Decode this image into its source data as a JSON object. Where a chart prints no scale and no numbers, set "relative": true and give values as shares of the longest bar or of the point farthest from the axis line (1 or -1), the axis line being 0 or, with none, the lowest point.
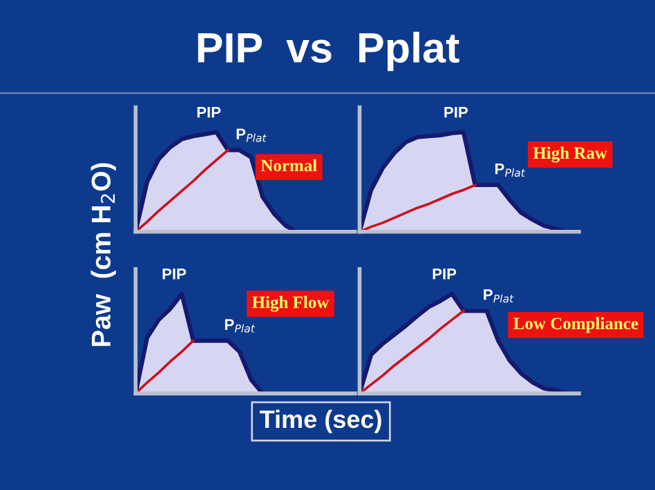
{
  "chart_data": [
    {
      "type": "area",
      "title": "PIP  vs  Pplat",
      "ylabel": "Paw  (cm H$_{2}$O)",
      "xlabel": "Time (sec)",
      "relative": true,
      "tick_labels": false,
      "legend": false,
      "categories": [
        null,
        null,
        null,
        null,
        null,
        null,
        null,
        null,
        null,
        null,
        null,
        null,
        null,
        null,
        null,
        null,
        null,
        null,
        null,
        null
      ],
      "series": [
        {
          "color": "#d6d6f2",
          "values": [
            0,
            0.5,
            0.73,
            0.85,
            0.93,
            0.96,
            0.98,
            1,
            0.82,
            0.82,
            0.75,
            0.35,
            0.18,
            0.06,
            0,
            0,
            0,
            0,
            0,
            0
          ]
        },
        {
          "type": "line",
          "color": "#cc1020",
          "values": [
            0,
            0.1,
            0.21,
            0.31,
            0.41,
            0.51,
            0.62,
            0.72,
            0.82,
            null,
            null,
            null,
            null,
            null,
            null,
            null,
            null,
            null,
            null,
            null
          ]
        }
      ],
      "annotations": [
        "PIP",
        "P$_{Plat}$",
        "Normal"
      ]
    },
    {
      "type": "area",
      "relative": true,
      "tick_labels": false,
      "legend": false,
      "categories": [
        null,
        null,
        null,
        null,
        null,
        null,
        null,
        null,
        null,
        null,
        null,
        null,
        null,
        null,
        null,
        null,
        null,
        null,
        null,
        null
      ],
      "series": [
        {
          "color": "#d6d6f2",
          "values": [
            0,
            0.42,
            0.64,
            0.79,
            0.9,
            0.95,
            0.96,
            0.97,
            0.99,
            1,
            0.47,
            0.47,
            0.47,
            0.32,
            0.19,
            0.12,
            0.06,
            0.03,
            0,
            0
          ]
        },
        {
          "type": "line",
          "color": "#cc1020",
          "values": [
            0,
            0.05,
            0.09,
            0.14,
            0.19,
            0.24,
            0.28,
            0.33,
            0.38,
            0.42,
            0.47,
            null,
            null,
            null,
            null,
            null,
            null,
            null,
            null,
            null
          ]
        }
      ],
      "annotations": [
        "PIP",
        "P$_{Plat}$",
        "High Raw"
      ]
    },
    {
      "type": "area",
      "relative": true,
      "tick_labels": false,
      "legend": false,
      "categories": [
        null,
        null,
        null,
        null,
        null,
        null,
        null,
        null,
        null,
        null,
        null,
        null,
        null,
        null,
        null,
        null,
        null,
        null,
        null,
        null
      ],
      "series": [
        {
          "color": "#d6d6f2",
          "values": [
            0,
            0.56,
            0.74,
            0.85,
            1,
            0.53,
            0.53,
            0.53,
            0.53,
            0.42,
            0.14,
            0,
            0,
            0,
            0,
            0,
            0,
            0,
            0,
            0
          ]
        },
        {
          "type": "line",
          "color": "#cc1020",
          "values": [
            0,
            0.11,
            0.21,
            0.32,
            0.42,
            0.53,
            null,
            null,
            null,
            null,
            null,
            null,
            null,
            null,
            null,
            null,
            null,
            null,
            null,
            null
          ]
        }
      ],
      "annotations": [
        "PIP",
        "P$_{Plat}$",
        "High Flow"
      ]
    },
    {
      "type": "area",
      "relative": true,
      "tick_labels": false,
      "legend": false,
      "categories": [
        null,
        null,
        null,
        null,
        null,
        null,
        null,
        null,
        null,
        null,
        null,
        null,
        null,
        null,
        null,
        null,
        null,
        null,
        null,
        null
      ],
      "series": [
        {
          "color": "#d6d6f2",
          "values": [
            0,
            0.39,
            0.5,
            0.59,
            0.68,
            0.78,
            0.87,
            0.93,
            1,
            0.83,
            0.83,
            0.83,
            0.53,
            0.33,
            0.2,
            0.11,
            0.05,
            0.03,
            0,
            0
          ]
        },
        {
          "type": "line",
          "color": "#cc1020",
          "values": [
            0,
            0.09,
            0.18,
            0.28,
            0.37,
            0.46,
            0.55,
            0.65,
            0.74,
            0.83,
            null,
            null,
            null,
            null,
            null,
            null,
            null,
            null,
            null,
            null
          ]
        }
      ],
      "annotations": [
        "PIP",
        "P$_{Plat}$",
        "Low Compliance"
      ]
    }
  ]
}
